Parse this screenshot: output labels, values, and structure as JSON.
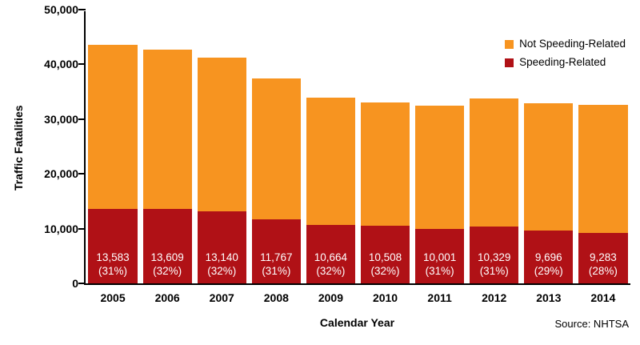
{
  "chart_data": {
    "type": "bar",
    "stacked": true,
    "title": "",
    "xlabel": "Calendar Year",
    "ylabel": "Traffic Fatalities",
    "source": "Source: NHTSA",
    "ylim": [
      0,
      50000
    ],
    "ytick_interval": 10000,
    "ytick_labels": [
      "0",
      "10,000",
      "20,000",
      "30,000",
      "40,000",
      "50,000"
    ],
    "grid": false,
    "legend_position": "top-right",
    "categories": [
      "2005",
      "2006",
      "2007",
      "2008",
      "2009",
      "2010",
      "2011",
      "2012",
      "2013",
      "2014"
    ],
    "series": [
      {
        "name": "Speeding-Related",
        "color": "#B01116",
        "values": [
          13583,
          13609,
          13140,
          11767,
          10664,
          10508,
          10001,
          10329,
          9696,
          9283
        ]
      },
      {
        "name": "Not Speeding-Related",
        "color": "#F79420",
        "values": [
          29927,
          29099,
          28119,
          25656,
          23219,
          22491,
          22478,
          23453,
          23197,
          23392
        ]
      }
    ],
    "totals": [
      43510,
      42708,
      41259,
      37423,
      33883,
      32999,
      32479,
      33782,
      32893,
      32675
    ],
    "bar_labels": [
      {
        "value": "13,583",
        "pct": "(31%)"
      },
      {
        "value": "13,609",
        "pct": "(32%)"
      },
      {
        "value": "13,140",
        "pct": "(32%)"
      },
      {
        "value": "11,767",
        "pct": "(31%)"
      },
      {
        "value": "10,664",
        "pct": "(32%)"
      },
      {
        "value": "10,508",
        "pct": "(32%)"
      },
      {
        "value": "10,001",
        "pct": "(31%)"
      },
      {
        "value": "10,329",
        "pct": "(31%)"
      },
      {
        "value": "9,696",
        "pct": "(29%)"
      },
      {
        "value": "9,283",
        "pct": "(28%)"
      }
    ],
    "legend": [
      {
        "label": "Not Speeding-Related",
        "color": "#F79420"
      },
      {
        "label": "Speeding-Related",
        "color": "#B01116"
      }
    ]
  }
}
